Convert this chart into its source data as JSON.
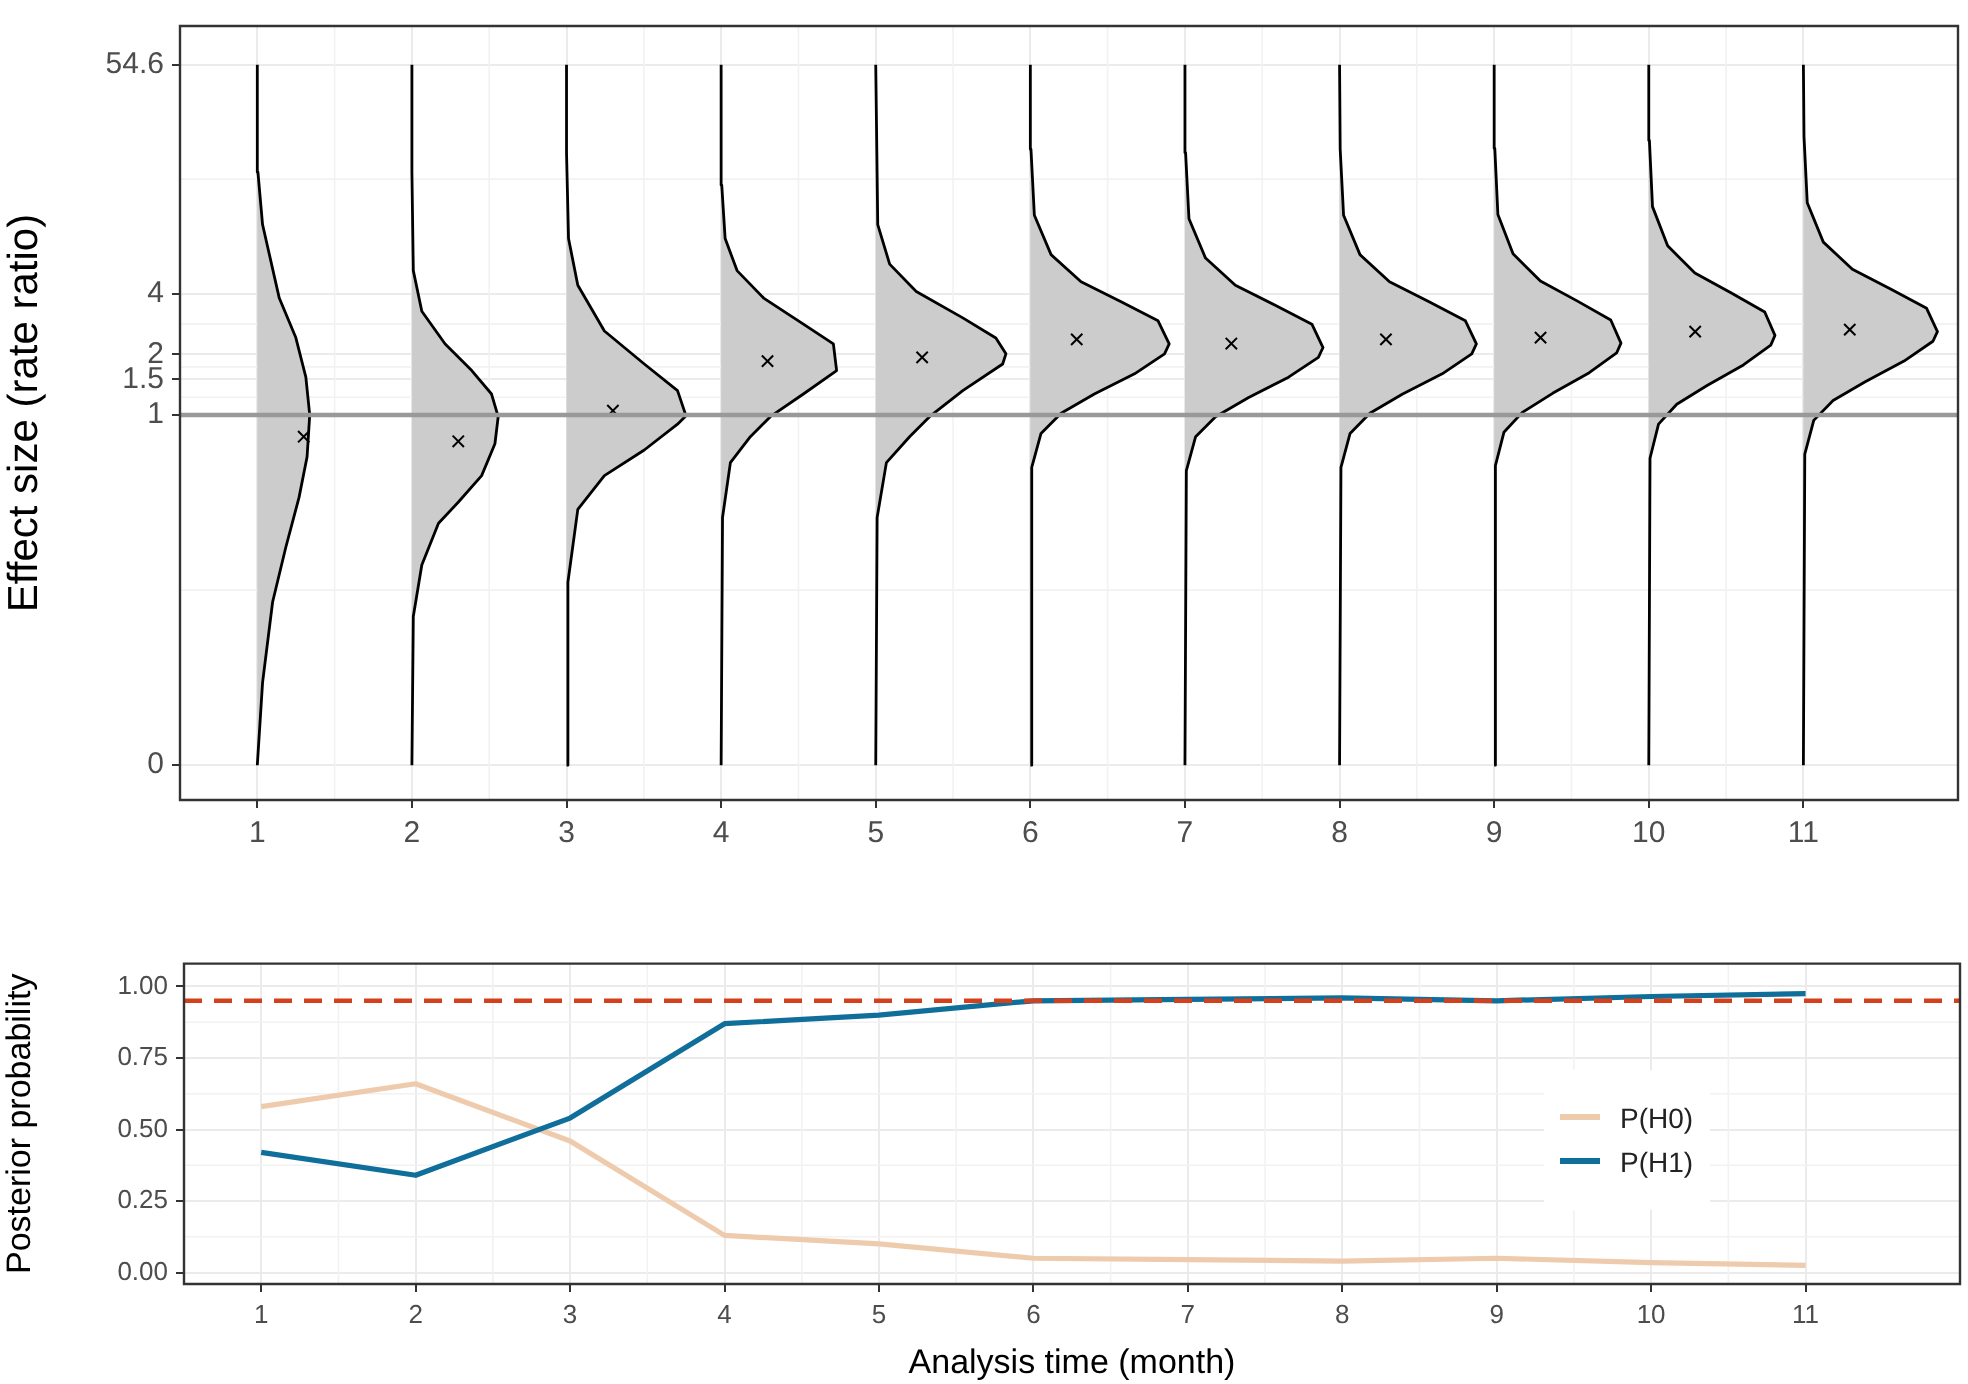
{
  "chart_data": [
    {
      "type": "area",
      "ylabel": "Effect size (rate ratio)",
      "log": "y",
      "xlim": [
        0.5,
        12
      ],
      "xticks": [
        1,
        2,
        3,
        4,
        5,
        6,
        7,
        8,
        9,
        10,
        11
      ],
      "ylim": [
        0.0123,
        85
      ],
      "yticks": [
        {
          "value": 0.0183,
          "label": "0"
        },
        1,
        1.5,
        2,
        4,
        54.6
      ],
      "grid": true,
      "legend": false,
      "ref_lines": [
        {
          "axis": "y",
          "value": 1,
          "color": "#999999"
        }
      ],
      "series": [
        {
          "color": "#cccccc",
          "x": [
            1,
            1.034,
            1.099,
            1.184,
            1.27,
            1.322,
            1.339,
            1.314,
            1.249,
            1.142,
            1.034,
            1.004,
            1
          ],
          "values": [
            0.0183,
            0.047,
            0.118,
            0.22,
            0.39,
            0.62,
            1.0,
            1.54,
            2.42,
            3.8,
            8.8,
            16,
            54.6
          ]
        },
        {
          "color": "#cccccc",
          "x": [
            2,
            2.009,
            2.064,
            2.172,
            2.301,
            2.451,
            2.537,
            2.558,
            2.515,
            2.387,
            2.215,
            2.064,
            2.009,
            2,
            2
          ],
          "values": [
            0.0183,
            0.1,
            0.18,
            0.29,
            0.37,
            0.5,
            0.72,
            0.98,
            1.27,
            1.66,
            2.25,
            3.27,
            5.2,
            16,
            54.6
          ]
        },
        {
          "color": "#cccccc",
          "x": [
            3,
            3.009,
            3.073,
            3.245,
            3.503,
            3.718,
            3.773,
            3.718,
            3.503,
            3.245,
            3.073,
            3.013,
            3,
            3
          ],
          "values": [
            0.0183,
            0.148,
            0.34,
            0.5,
            0.67,
            0.9,
            0.99,
            1.32,
            1.79,
            2.61,
            4.4,
            7.5,
            20,
            54.6
          ]
        },
        {
          "color": "#cccccc",
          "x": [
            4,
            4.009,
            4.06,
            4.189,
            4.318,
            4.532,
            4.747,
            4.726,
            4.532,
            4.275,
            4.103,
            4.026,
            4.004,
            4
          ],
          "values": [
            0.0183,
            0.31,
            0.58,
            0.78,
            0.98,
            1.27,
            1.66,
            2.25,
            2.82,
            3.8,
            5.2,
            7.5,
            13.8,
            54.6
          ]
        },
        {
          "color": "#cccccc",
          "x": [
            5,
            5.009,
            5.069,
            5.219,
            5.348,
            5.563,
            5.821,
            5.842,
            5.777,
            5.563,
            5.262,
            5.09,
            5.013,
            5
          ],
          "values": [
            0.0183,
            0.31,
            0.58,
            0.78,
            0.98,
            1.32,
            1.79,
            2.01,
            2.41,
            3.03,
            4.1,
            5.6,
            8.8,
            54.6
          ]
        },
        {
          "color": "#cccccc",
          "x": [
            6,
            6.009,
            6.069,
            6.199,
            6.414,
            6.674,
            6.868,
            6.898,
            6.826,
            6.587,
            6.328,
            6.134,
            6.026,
            6.004,
            6
          ],
          "values": [
            0.0183,
            0.55,
            0.81,
            1.02,
            1.27,
            1.6,
            2.01,
            2.25,
            2.93,
            3.64,
            4.58,
            6.24,
            9.78,
            20.8,
            54.6
          ]
        },
        {
          "color": "#cccccc",
          "x": [
            7,
            7.009,
            7.069,
            7.198,
            7.412,
            7.67,
            7.863,
            7.893,
            7.821,
            7.584,
            7.326,
            7.133,
            7.026,
            7.004,
            7
          ],
          "values": [
            0.0183,
            0.53,
            0.78,
            0.98,
            1.22,
            1.54,
            1.93,
            2.16,
            2.82,
            3.5,
            4.4,
            6.0,
            9.4,
            20,
            54.6
          ]
        },
        {
          "color": "#cccccc",
          "x": [
            8,
            8.009,
            8.068,
            8.196,
            8.408,
            8.664,
            8.855,
            8.885,
            8.814,
            8.579,
            8.323,
            8.132,
            8.026,
            8.004,
            8
          ],
          "values": [
            0.0183,
            0.55,
            0.81,
            1.02,
            1.27,
            1.6,
            2.01,
            2.25,
            2.93,
            3.64,
            4.58,
            6.24,
            9.78,
            20.8,
            54.6
          ]
        },
        {
          "color": "#cccccc",
          "x": [
            9,
            9.008,
            9.063,
            9.182,
            9.378,
            9.615,
            9.792,
            9.82,
            9.754,
            9.536,
            9.299,
            9.122,
            9.024,
            9.004,
            9
          ],
          "values": [
            0.0183,
            0.56,
            0.82,
            1.03,
            1.28,
            1.62,
            2.03,
            2.27,
            2.96,
            3.68,
            4.62,
            6.3,
            9.87,
            21,
            54.6
          ]
        },
        {
          "color": "#cccccc",
          "x": [
            10,
            10.008,
            10.063,
            10.181,
            10.377,
            10.612,
            10.789,
            10.816,
            10.75,
            10.534,
            10.298,
            10.122,
            10.024,
            10.004,
            10
          ],
          "values": [
            0.0183,
            0.61,
            0.9,
            1.13,
            1.4,
            1.77,
            2.22,
            2.48,
            3.24,
            4.03,
            5.06,
            6.9,
            10.8,
            23,
            54.6
          ]
        },
        {
          "color": "#cccccc",
          "x": [
            11,
            11.009,
            11.067,
            11.192,
            11.4,
            11.651,
            11.838,
            11.867,
            11.797,
            11.567,
            11.317,
            11.129,
            11.025,
            11.004,
            11
          ],
          "values": [
            0.0183,
            0.64,
            0.94,
            1.18,
            1.46,
            1.85,
            2.32,
            2.59,
            3.38,
            4.2,
            5.28,
            7.2,
            11.3,
            24,
            54.6
          ]
        },
        {
          "type": "scatter",
          "marker": "cross",
          "color": "#000000",
          "x": [
            1.3,
            2.3,
            3.3,
            4.3,
            5.3,
            6.3,
            7.3,
            8.3,
            9.3,
            10.3,
            11.3
          ],
          "values": [
            0.78,
            0.74,
            1.05,
            1.85,
            1.93,
            2.37,
            2.26,
            2.37,
            2.42,
            2.59,
            2.65
          ]
        }
      ]
    },
    {
      "type": "line",
      "xlabel": "Analysis time (month)",
      "ylabel": "Posterior probability",
      "x": [
        1,
        2,
        3,
        4,
        5,
        6,
        7,
        8,
        9,
        10,
        11
      ],
      "xlim": [
        0.5,
        12
      ],
      "xticks": [
        1,
        2,
        3,
        4,
        5,
        6,
        7,
        8,
        9,
        10,
        11
      ],
      "ylim": [
        -0.04,
        1.08
      ],
      "yticks": [
        {
          "value": 0,
          "label": "0.00"
        },
        {
          "value": 0.25,
          "label": "0.25"
        },
        {
          "value": 0.5,
          "label": "0.50"
        },
        {
          "value": 0.75,
          "label": "0.75"
        },
        {
          "value": 1,
          "label": "1.00"
        }
      ],
      "grid": true,
      "legend": "right",
      "ref_lines": [
        {
          "axis": "y",
          "value": 0.95,
          "color": "#d5401c",
          "line_style": "dashed"
        }
      ],
      "series": [
        {
          "name": "P(H0)",
          "color": "#eecbad",
          "values": [
            0.58,
            0.66,
            0.46,
            0.13,
            0.1,
            0.05,
            0.045,
            0.04,
            0.05,
            0.035,
            0.025
          ]
        },
        {
          "name": "P(H1)",
          "color": "#0f6e9a",
          "values": [
            0.42,
            0.34,
            0.54,
            0.87,
            0.9,
            0.95,
            0.955,
            0.96,
            0.95,
            0.965,
            0.975
          ]
        }
      ]
    }
  ]
}
